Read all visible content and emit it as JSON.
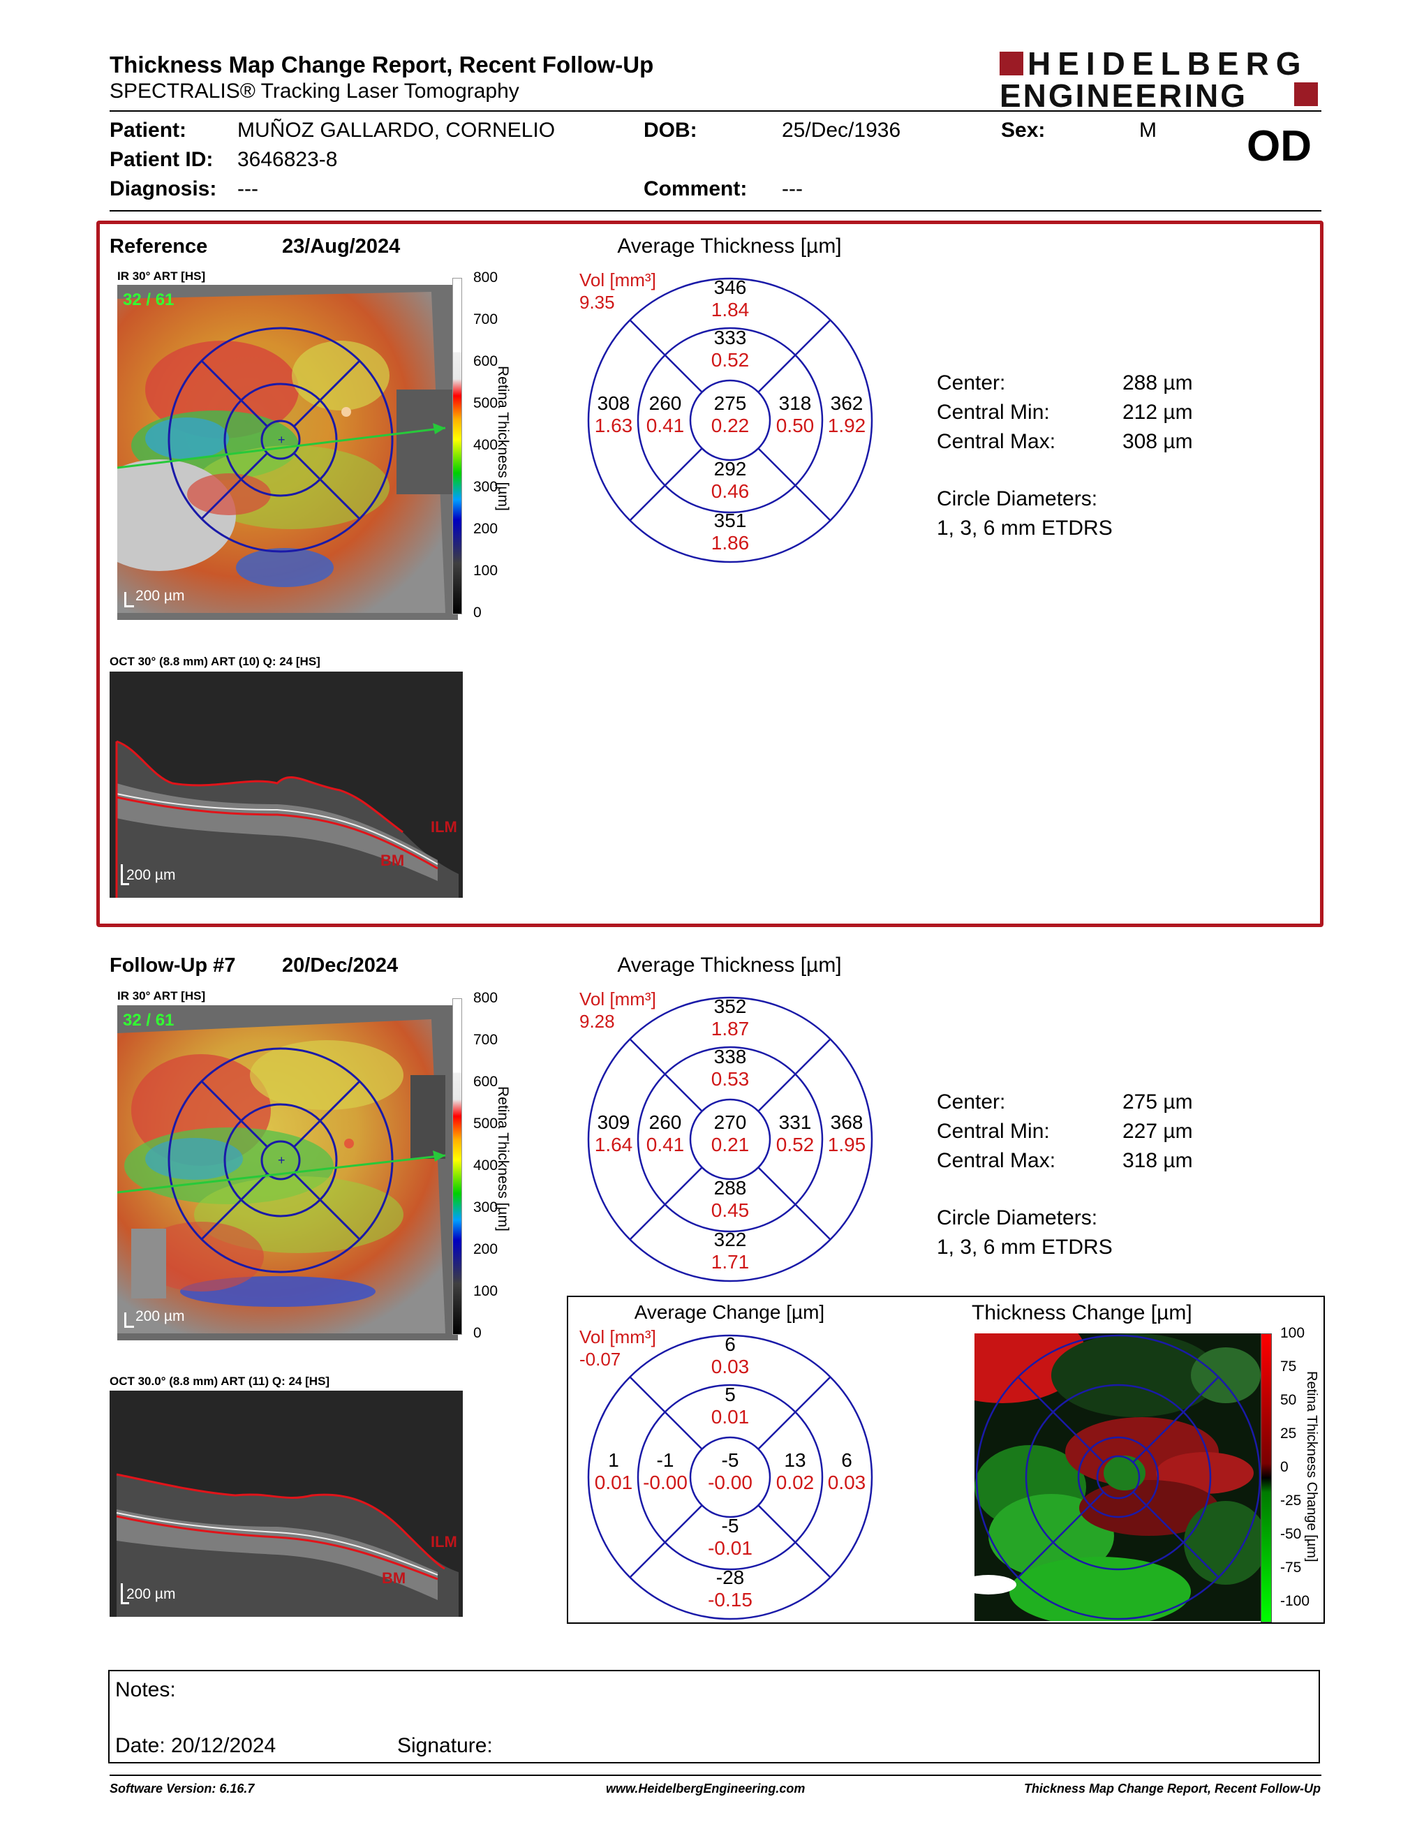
{
  "header": {
    "title": "Thickness Map Change Report, Recent Follow-Up",
    "subtitle": "SPECTRALIS® Tracking Laser Tomography",
    "logo_line1": "HEIDELBERG",
    "logo_line2": "ENGINEERING",
    "brand_color": "#9b1b25"
  },
  "patient": {
    "patient_label": "Patient:",
    "patient_value": "MUÑOZ GALLARDO, CORNELIO",
    "dob_label": "DOB:",
    "dob_value": "25/Dec/1936",
    "sex_label": "Sex:",
    "sex_value": "M",
    "id_label": "Patient ID:",
    "id_value": "3646823-8",
    "eye": "OD",
    "diagnosis_label": "Diagnosis:",
    "diagnosis_value": "---",
    "comment_label": "Comment:",
    "comment_value": "---"
  },
  "reference": {
    "label": "Reference",
    "date": "23/Aug/2024",
    "ir_label": "IR 30° ART [HS]",
    "frames": "32 / 61",
    "scalebar_ir": "200 µm",
    "oct_label": "OCT 30° (8.8 mm) ART (10) Q: 24 [HS]",
    "scalebar_oct": "200 µm",
    "ilm": "ILM",
    "bm": "BM",
    "grid_title": "Average Thickness [µm]",
    "vol_label": "Vol [mm³]",
    "vol_value": "9.35",
    "grid": {
      "outer_sup": "346",
      "outer_sup_vol": "1.84",
      "inner_sup": "333",
      "inner_sup_vol": "0.52",
      "outer_temp": "308",
      "outer_temp_vol": "1.63",
      "inner_temp": "260",
      "inner_temp_vol": "0.41",
      "center": "275",
      "center_vol": "0.22",
      "inner_nas": "318",
      "inner_nas_vol": "0.50",
      "outer_nas": "362",
      "outer_nas_vol": "1.92",
      "inner_inf": "292",
      "inner_inf_vol": "0.46",
      "outer_inf": "351",
      "outer_inf_vol": "1.86"
    },
    "stats": {
      "center_label": "Center:",
      "center_value": "288 µm",
      "min_label": "Central Min:",
      "min_value": "212 µm",
      "max_label": "Central Max:",
      "max_value": "308 µm",
      "diam_label": "Circle Diameters:",
      "diam_value": "1, 3, 6 mm ETDRS"
    }
  },
  "followup": {
    "label": "Follow-Up #7",
    "date": "20/Dec/2024",
    "ir_label": "IR 30° ART [HS]",
    "frames": "32 / 61",
    "scalebar_ir": "200 µm",
    "oct_label": "OCT 30.0° (8.8 mm) ART (11) Q: 24 [HS]",
    "scalebar_oct": "200 µm",
    "ilm": "ILM",
    "bm": "BM",
    "grid_title": "Average Thickness [µm]",
    "vol_label": "Vol [mm³]",
    "vol_value": "9.28",
    "grid": {
      "outer_sup": "352",
      "outer_sup_vol": "1.87",
      "inner_sup": "338",
      "inner_sup_vol": "0.53",
      "outer_temp": "309",
      "outer_temp_vol": "1.64",
      "inner_temp": "260",
      "inner_temp_vol": "0.41",
      "center": "270",
      "center_vol": "0.21",
      "inner_nas": "331",
      "inner_nas_vol": "0.52",
      "outer_nas": "368",
      "outer_nas_vol": "1.95",
      "inner_inf": "288",
      "inner_inf_vol": "0.45",
      "outer_inf": "322",
      "outer_inf_vol": "1.71"
    },
    "stats": {
      "center_label": "Center:",
      "center_value": "275 µm",
      "min_label": "Central Min:",
      "min_value": "227 µm",
      "max_label": "Central Max:",
      "max_value": "318 µm",
      "diam_label": "Circle Diameters:",
      "diam_value": "1, 3, 6 mm ETDRS"
    }
  },
  "thickness_scale": {
    "title": "Retina Thickness [µm]",
    "ticks": [
      "800",
      "700",
      "600",
      "500",
      "400",
      "300",
      "200",
      "100",
      "0"
    ]
  },
  "change": {
    "grid_title": "Average Change [µm]",
    "vol_label": "Vol [mm³]",
    "vol_value": "-0.07",
    "grid": {
      "outer_sup": "6",
      "outer_sup_vol": "0.03",
      "inner_sup": "5",
      "inner_sup_vol": "0.01",
      "outer_temp": "1",
      "outer_temp_vol": "0.01",
      "inner_temp": "-1",
      "inner_temp_vol": "-0.00",
      "center": "-5",
      "center_vol": "-0.00",
      "inner_nas": "13",
      "inner_nas_vol": "0.02",
      "outer_nas": "6",
      "outer_nas_vol": "0.03",
      "inner_inf": "-5",
      "inner_inf_vol": "-0.01",
      "outer_inf": "-28",
      "outer_inf_vol": "-0.15"
    },
    "map_title": "Thickness Change [µm]",
    "scale_title": "Retina Thickness Change [µm]",
    "scale_ticks": [
      "100",
      "75",
      "50",
      "25",
      "0",
      "-25",
      "-50",
      "-75",
      "-100"
    ]
  },
  "notes": {
    "notes_label": "Notes:",
    "date_label": "Date: 20/12/2024",
    "signature_label": "Signature:"
  },
  "footer": {
    "software": "Software Version: 6.16.7",
    "website": "www.HeidelbergEngineering.com",
    "report": "Thickness Map Change Report, Recent Follow-Up"
  },
  "colors": {
    "grid_blue": "#1a1aa8",
    "vol_red": "#d01818",
    "frame_red": "#b0161f",
    "frames_green": "#33ff33"
  }
}
